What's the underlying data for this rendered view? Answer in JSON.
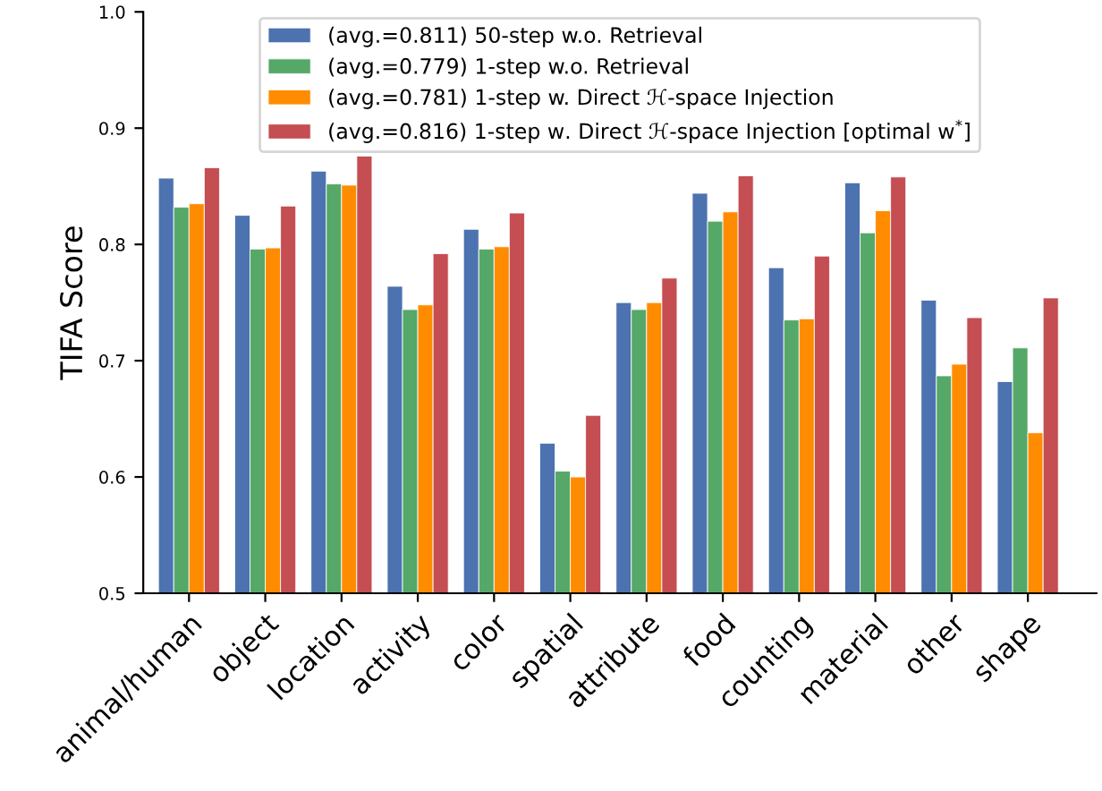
{
  "chart_data": {
    "type": "bar",
    "ylabel": "TIFA Score",
    "categories": [
      "animal/human",
      "object",
      "location",
      "activity",
      "color",
      "spatial",
      "attribute",
      "food",
      "counting",
      "material",
      "other",
      "shape"
    ],
    "series": [
      {
        "name": "(avg.=0.811) 50-step w.o. Retrieval",
        "color": "#4c72b0",
        "values": [
          0.857,
          0.825,
          0.863,
          0.764,
          0.813,
          0.629,
          0.75,
          0.844,
          0.78,
          0.853,
          0.752,
          0.682
        ]
      },
      {
        "name": "(avg.=0.779) 1-step w.o. Retrieval",
        "color": "#55a868",
        "values": [
          0.832,
          0.796,
          0.852,
          0.744,
          0.796,
          0.605,
          0.744,
          0.82,
          0.735,
          0.81,
          0.687,
          0.711
        ]
      },
      {
        "name": "(avg.=0.781) 1-step w. Direct ℋ-space Injection",
        "color": "#ff8c00",
        "values": [
          0.835,
          0.797,
          0.851,
          0.748,
          0.798,
          0.6,
          0.75,
          0.828,
          0.736,
          0.829,
          0.697,
          0.638
        ]
      },
      {
        "name": "(avg.=0.816) 1-step w. Direct ℋ-space Injection [optimal w$^{*}$]",
        "color": "#c44e52",
        "values": [
          0.866,
          0.833,
          0.876,
          0.792,
          0.827,
          0.653,
          0.771,
          0.859,
          0.79,
          0.858,
          0.737,
          0.754
        ]
      }
    ],
    "ylim": [
      0.5,
      1.0
    ],
    "yticks": [
      {
        "value": 0.5,
        "label": "0.5"
      },
      {
        "value": 0.6,
        "label": "0.6"
      },
      {
        "value": 0.7,
        "label": "0.7"
      },
      {
        "value": 0.8,
        "label": "0.8"
      },
      {
        "value": 0.9,
        "label": "0.9"
      },
      {
        "value": 1.0,
        "label": "1.0"
      }
    ],
    "grid": false,
    "legend": "top"
  }
}
